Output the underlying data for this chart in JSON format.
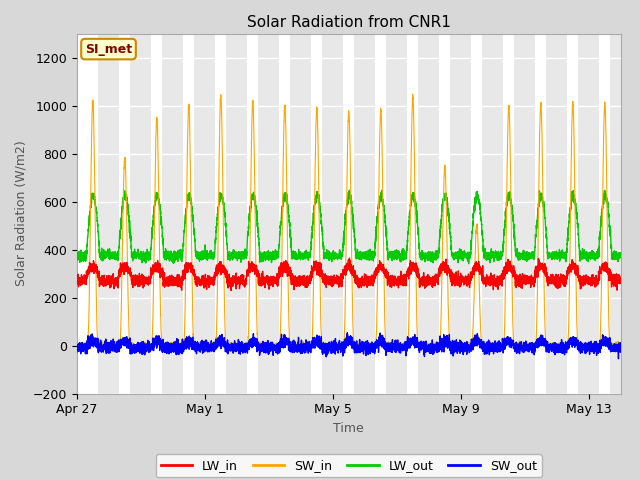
{
  "title": "Solar Radiation from CNR1",
  "xlabel": "Time",
  "ylabel": "Solar Radiation (W/m2)",
  "ylim": [
    -200,
    1300
  ],
  "yticks": [
    -200,
    0,
    200,
    400,
    600,
    800,
    1000,
    1200
  ],
  "x_tick_labels": [
    "Apr 27",
    "May 1",
    "May 5",
    "May 9",
    "May 13"
  ],
  "x_tick_positions": [
    0,
    4,
    8,
    12,
    16
  ],
  "colors": {
    "LW_in": "#ff0000",
    "SW_in": "#ffa500",
    "LW_out": "#00cc00",
    "SW_out": "#0000ff"
  },
  "legend_label": "SI_met",
  "legend_bg": "#ffffcc",
  "legend_border": "#cc8800",
  "legend_text_color": "#880000",
  "num_days": 17,
  "ppd": 288,
  "fig_bg": "#d8d8d8",
  "plot_bg": "#ffffff",
  "grid_color": "#e0e0e0",
  "band_color": "#e8e8e8",
  "title_fontsize": 11,
  "axis_label_fontsize": 9,
  "tick_fontsize": 9
}
